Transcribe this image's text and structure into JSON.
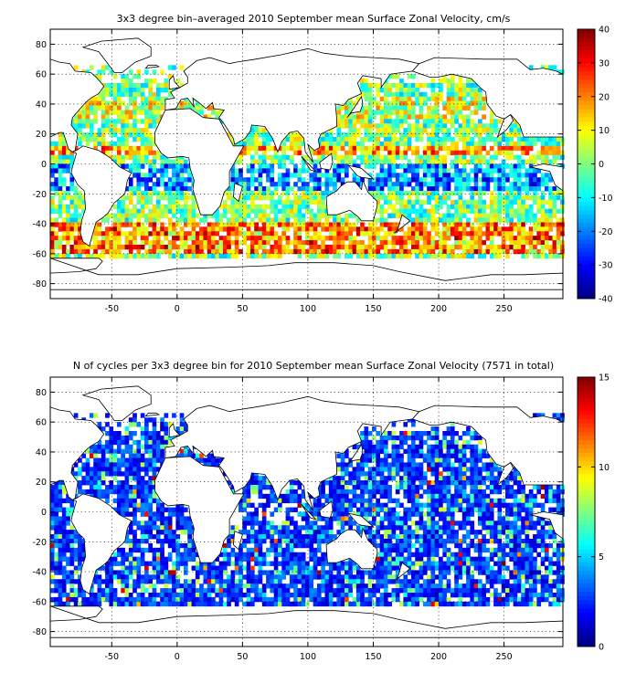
{
  "chart_data": [
    {
      "type": "heatmap",
      "title": "3x3 degree bin–averaged 2010 September mean Surface Zonal Velocity, cm/s",
      "xticks": [
        "-50",
        "0",
        "50",
        "100",
        "150",
        "200",
        "250"
      ],
      "yticks": [
        "80",
        "60",
        "40",
        "20",
        "0",
        "-20",
        "-40",
        "-60",
        "-80"
      ],
      "xlim": [
        -97,
        295
      ],
      "ylim": [
        -90,
        90
      ],
      "colorbar": {
        "ticks": [
          "40",
          "30",
          "20",
          "10",
          "0",
          "-10",
          "-20",
          "-30",
          "-40"
        ],
        "range": [
          -40,
          40
        ],
        "colormap": "jet"
      },
      "bin_size_deg": 3,
      "grid": true
    },
    {
      "type": "heatmap",
      "title": "N of cycles per 3x3 degree bin for 2010 September mean Surface Zonal Velocity (7571 in total)",
      "xticks": [
        "-50",
        "0",
        "50",
        "100",
        "150",
        "200",
        "250"
      ],
      "yticks": [
        "80",
        "60",
        "40",
        "20",
        "0",
        "-20",
        "-40",
        "-60",
        "-80"
      ],
      "xlim": [
        -97,
        295
      ],
      "ylim": [
        -90,
        90
      ],
      "colorbar": {
        "ticks": [
          "15",
          "10",
          "5",
          "0"
        ],
        "range": [
          0,
          15
        ],
        "colormap": "jet"
      },
      "bin_size_deg": 3,
      "total_cycles": 7571,
      "grid": true
    }
  ]
}
